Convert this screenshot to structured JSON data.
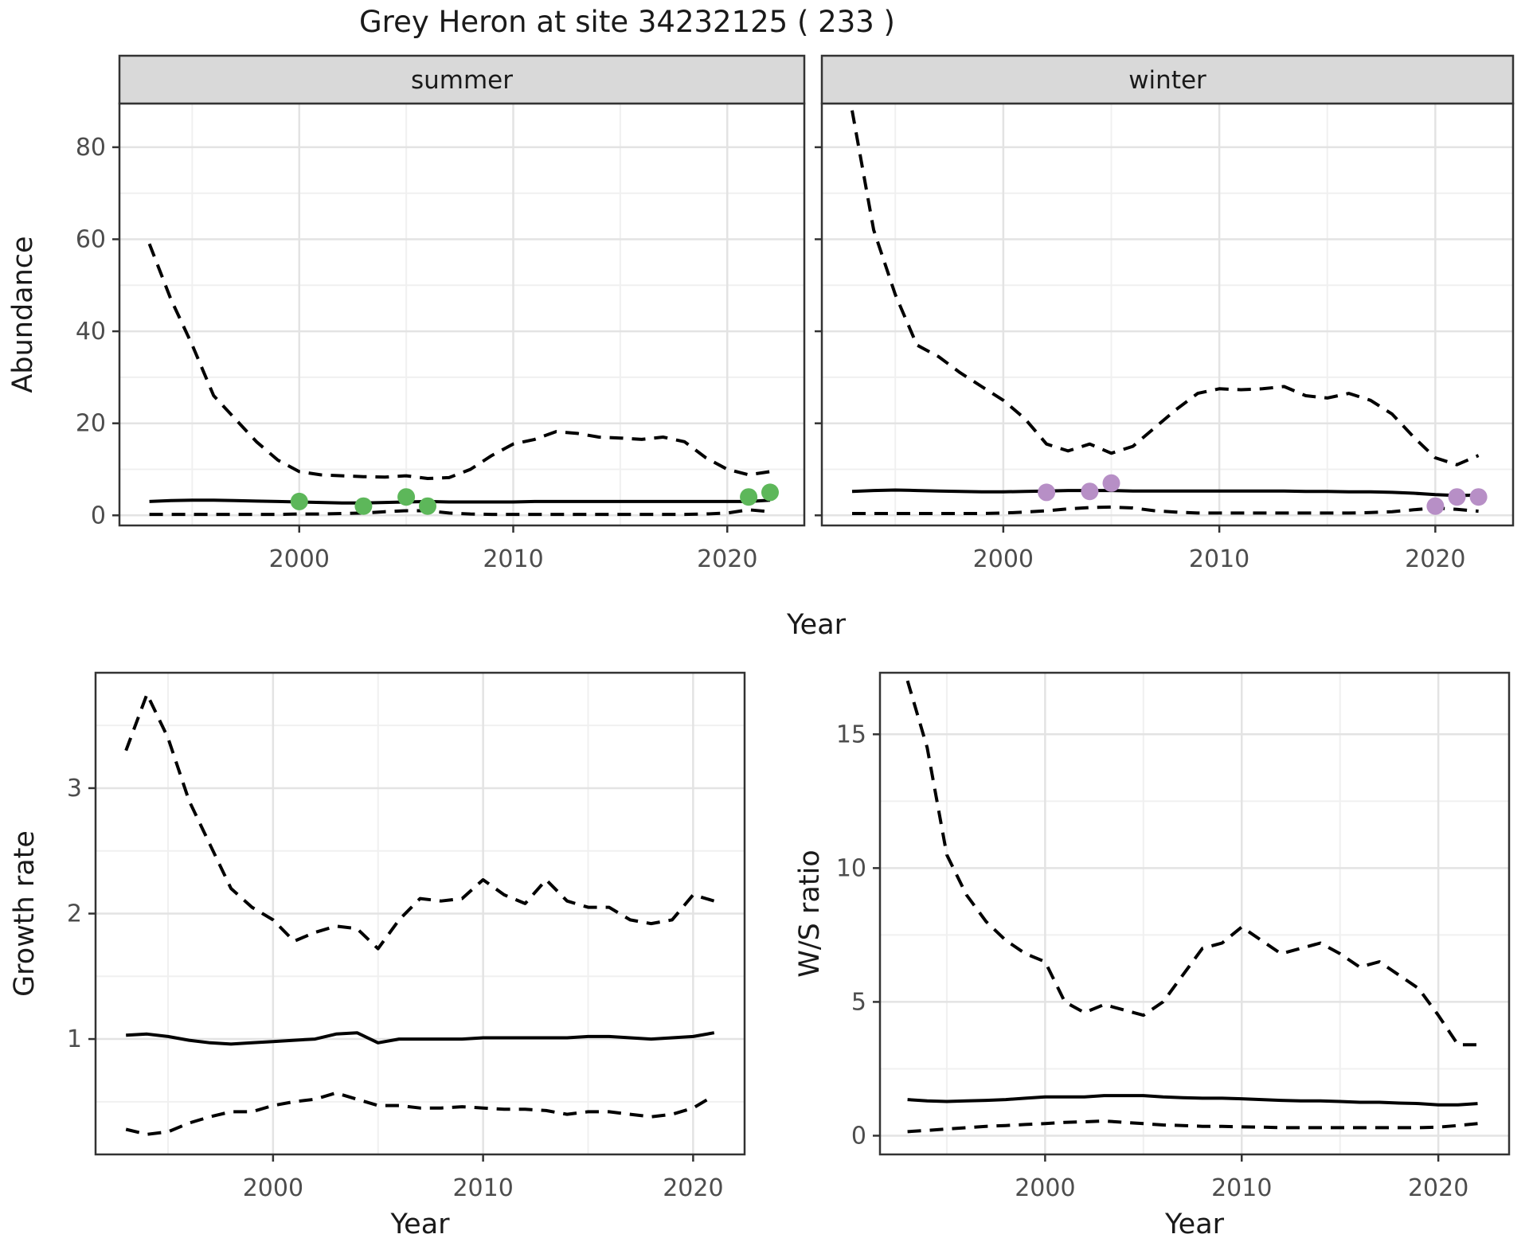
{
  "title": "Grey Heron at site 34232125 ( 233 )",
  "styles": {
    "strip_bg": "#d9d9d9",
    "grid_major": "#e3e3e3",
    "grid_minor": "#f0f0f0",
    "border": "#333333",
    "tick_label": "#4d4d4d",
    "text": "#1a1a1a",
    "line_color": "#000000",
    "point_green": "#5db75a",
    "point_purple": "#b78fc6"
  },
  "chart_data": [
    {
      "id": "abundance-summer",
      "type": "line",
      "facet": "summer",
      "ylabel": "Abundance",
      "xlabel": "Year",
      "xlim": [
        1991.6,
        2023.6
      ],
      "ylim": [
        -2.2,
        89.5
      ],
      "x_ticks": [
        2000,
        2010,
        2020
      ],
      "x_tick_labels": [
        "2000",
        "2010",
        "2020"
      ],
      "x_minor": [
        1995,
        2005,
        2015
      ],
      "y_ticks": [
        0,
        20,
        40,
        60,
        80
      ],
      "y_tick_labels": [
        "0",
        "20",
        "40",
        "60",
        "80"
      ],
      "y_minor": [
        10,
        30,
        50,
        70
      ],
      "x": [
        1993,
        1994,
        1995,
        1996,
        1997,
        1998,
        1999,
        2000,
        2001,
        2002,
        2003,
        2004,
        2005,
        2006,
        2007,
        2008,
        2009,
        2010,
        2011,
        2012,
        2013,
        2014,
        2015,
        2016,
        2017,
        2018,
        2019,
        2020,
        2021,
        2022
      ],
      "series": [
        {
          "name": "upper-ci",
          "style": "dashed",
          "values": [
            59,
            47,
            37,
            26,
            21,
            16,
            12,
            9.5,
            8.8,
            8.6,
            8.4,
            8.3,
            8.6,
            8,
            8.2,
            10,
            13,
            15.5,
            16.5,
            18.2,
            17.8,
            17,
            16.8,
            16.5,
            17,
            16,
            12.5,
            10,
            8.8,
            9.5
          ]
        },
        {
          "name": "median",
          "style": "solid",
          "values": [
            3,
            3.2,
            3.3,
            3.3,
            3.2,
            3.1,
            3,
            2.9,
            2.8,
            2.7,
            2.7,
            2.8,
            2.9,
            3,
            2.9,
            2.9,
            2.9,
            2.9,
            3,
            3,
            3,
            3,
            3,
            3,
            3,
            3,
            3,
            3,
            3,
            3.3
          ]
        },
        {
          "name": "lower-ci",
          "style": "dashed",
          "values": [
            0.2,
            0.2,
            0.2,
            0.2,
            0.2,
            0.2,
            0.2,
            0.3,
            0.3,
            0.4,
            0.5,
            0.8,
            1,
            1,
            0.5,
            0.3,
            0.2,
            0.2,
            0.2,
            0.2,
            0.2,
            0.2,
            0.2,
            0.2,
            0.2,
            0.2,
            0.3,
            0.5,
            1.2,
            0.8
          ]
        }
      ],
      "points": {
        "name": "observed-counts-summer",
        "color_key": "point_green",
        "x": [
          2000,
          2003,
          2005,
          2006,
          2021,
          2022
        ],
        "y": [
          3,
          2,
          4,
          2,
          4,
          5
        ]
      }
    },
    {
      "id": "abundance-winter",
      "type": "line",
      "facet": "winter",
      "xlim": [
        1991.6,
        2023.6
      ],
      "ylim": [
        -2.2,
        89.5
      ],
      "x_ticks": [
        2000,
        2010,
        2020
      ],
      "x_tick_labels": [
        "2000",
        "2010",
        "2020"
      ],
      "x_minor": [
        1995,
        2005,
        2015
      ],
      "y_ticks": [
        0,
        20,
        40,
        60,
        80
      ],
      "y_tick_labels": [
        "0",
        "20",
        "40",
        "60",
        "80"
      ],
      "y_minor": [
        10,
        30,
        50,
        70
      ],
      "x": [
        1993,
        1994,
        1995,
        1996,
        1997,
        1998,
        1999,
        2000,
        2001,
        2002,
        2003,
        2004,
        2005,
        2006,
        2007,
        2008,
        2009,
        2010,
        2011,
        2012,
        2013,
        2014,
        2015,
        2016,
        2017,
        2018,
        2019,
        2020,
        2021,
        2022
      ],
      "series": [
        {
          "name": "upper-ci",
          "style": "dashed",
          "values": [
            88,
            62,
            48,
            37,
            34.5,
            31,
            28,
            25,
            21,
            15.5,
            14,
            15.5,
            13.5,
            15,
            19,
            23,
            26.5,
            27.5,
            27.3,
            27.5,
            28,
            26,
            25.5,
            26.5,
            25,
            22,
            17,
            12.5,
            11,
            13
          ]
        },
        {
          "name": "median",
          "style": "solid",
          "values": [
            5.2,
            5.4,
            5.5,
            5.4,
            5.3,
            5.2,
            5.1,
            5.1,
            5.2,
            5.3,
            5.4,
            5.4,
            5.4,
            5.3,
            5.3,
            5.3,
            5.3,
            5.3,
            5.3,
            5.3,
            5.3,
            5.2,
            5.2,
            5.1,
            5.1,
            5,
            4.8,
            4.5,
            4.3,
            4.4
          ]
        },
        {
          "name": "lower-ci",
          "style": "dashed",
          "values": [
            0.4,
            0.4,
            0.4,
            0.4,
            0.4,
            0.4,
            0.4,
            0.5,
            0.7,
            1,
            1.4,
            1.7,
            1.8,
            1.6,
            1,
            0.7,
            0.5,
            0.5,
            0.5,
            0.5,
            0.5,
            0.5,
            0.5,
            0.5,
            0.6,
            0.8,
            1.2,
            1.6,
            1.3,
            0.9
          ]
        }
      ],
      "points": {
        "name": "observed-counts-winter",
        "color_key": "point_purple",
        "x": [
          2002,
          2004,
          2005,
          2020,
          2021,
          2022
        ],
        "y": [
          5,
          5.2,
          7,
          2,
          4,
          4
        ]
      }
    },
    {
      "id": "growth-rate",
      "type": "line",
      "ylabel": "Growth rate",
      "xlabel": "Year",
      "xlim": [
        1991.55,
        2022.45
      ],
      "ylim": [
        0.08,
        3.92
      ],
      "x_ticks": [
        2000,
        2010,
        2020
      ],
      "x_tick_labels": [
        "2000",
        "2010",
        "2020"
      ],
      "x_minor": [
        1995,
        2005,
        2015
      ],
      "y_ticks": [
        1,
        2,
        3
      ],
      "y_tick_labels": [
        "1",
        "2",
        "3"
      ],
      "y_minor": [
        0.5,
        1.5,
        2.5,
        3.5
      ],
      "x": [
        1993,
        1994,
        1995,
        1996,
        1997,
        1998,
        1999,
        2000,
        2001,
        2002,
        2003,
        2004,
        2005,
        2006,
        2007,
        2008,
        2009,
        2010,
        2011,
        2012,
        2013,
        2014,
        2015,
        2016,
        2017,
        2018,
        2019,
        2020,
        2021
      ],
      "series": [
        {
          "name": "upper-ci",
          "style": "dashed",
          "values": [
            3.3,
            3.75,
            3.4,
            2.9,
            2.55,
            2.2,
            2.05,
            1.95,
            1.78,
            1.85,
            1.9,
            1.88,
            1.72,
            1.95,
            2.12,
            2.1,
            2.12,
            2.27,
            2.15,
            2.08,
            2.27,
            2.1,
            2.05,
            2.05,
            1.95,
            1.92,
            1.95,
            2.15,
            2.1
          ]
        },
        {
          "name": "median",
          "style": "solid",
          "values": [
            1.03,
            1.04,
            1.02,
            0.99,
            0.97,
            0.96,
            0.97,
            0.98,
            0.99,
            1,
            1.04,
            1.05,
            0.97,
            1,
            1,
            1,
            1,
            1.01,
            1.01,
            1.01,
            1.01,
            1.01,
            1.02,
            1.02,
            1.01,
            1,
            1.01,
            1.02,
            1.05
          ]
        },
        {
          "name": "lower-ci",
          "style": "dashed",
          "values": [
            0.28,
            0.24,
            0.26,
            0.33,
            0.38,
            0.42,
            0.42,
            0.47,
            0.5,
            0.52,
            0.57,
            0.52,
            0.47,
            0.47,
            0.45,
            0.45,
            0.46,
            0.45,
            0.44,
            0.44,
            0.43,
            0.4,
            0.42,
            0.42,
            0.4,
            0.38,
            0.4,
            0.45,
            0.55
          ]
        }
      ]
    },
    {
      "id": "ws-ratio",
      "type": "line",
      "ylabel": "W/S ratio",
      "xlabel": "Year",
      "xlim": [
        1991.6,
        2023.6
      ],
      "ylim": [
        -0.7,
        17.3
      ],
      "x_ticks": [
        2000,
        2010,
        2020
      ],
      "x_tick_labels": [
        "2000",
        "2010",
        "2020"
      ],
      "x_minor": [
        1995,
        2005,
        2015
      ],
      "y_ticks": [
        0,
        5,
        10,
        15
      ],
      "y_tick_labels": [
        "0",
        "5",
        "10",
        "15"
      ],
      "y_minor": [
        2.5,
        7.5,
        12.5
      ],
      "x": [
        1993,
        1994,
        1995,
        1996,
        1997,
        1998,
        1999,
        2000,
        2001,
        2002,
        2003,
        2004,
        2005,
        2006,
        2007,
        2008,
        2009,
        2010,
        2011,
        2012,
        2013,
        2014,
        2015,
        2016,
        2017,
        2018,
        2019,
        2020,
        2021,
        2022
      ],
      "series": [
        {
          "name": "upper-ci",
          "style": "dashed",
          "values": [
            17,
            14.5,
            10.5,
            9,
            8,
            7.3,
            6.8,
            6.5,
            5,
            4.6,
            4.9,
            4.7,
            4.5,
            5,
            6,
            7,
            7.2,
            7.8,
            7.3,
            6.8,
            7,
            7.2,
            6.8,
            6.3,
            6.5,
            6,
            5.5,
            4.5,
            3.4,
            3.4
          ]
        },
        {
          "name": "median",
          "style": "solid",
          "values": [
            1.35,
            1.3,
            1.28,
            1.3,
            1.32,
            1.35,
            1.4,
            1.45,
            1.45,
            1.45,
            1.5,
            1.5,
            1.5,
            1.45,
            1.42,
            1.4,
            1.4,
            1.38,
            1.35,
            1.32,
            1.3,
            1.3,
            1.28,
            1.25,
            1.25,
            1.22,
            1.2,
            1.15,
            1.15,
            1.2
          ]
        },
        {
          "name": "lower-ci",
          "style": "dashed",
          "values": [
            0.15,
            0.2,
            0.25,
            0.3,
            0.35,
            0.38,
            0.42,
            0.45,
            0.5,
            0.52,
            0.55,
            0.5,
            0.45,
            0.4,
            0.38,
            0.35,
            0.35,
            0.33,
            0.32,
            0.3,
            0.3,
            0.3,
            0.3,
            0.3,
            0.3,
            0.3,
            0.3,
            0.32,
            0.38,
            0.45
          ]
        }
      ]
    }
  ]
}
